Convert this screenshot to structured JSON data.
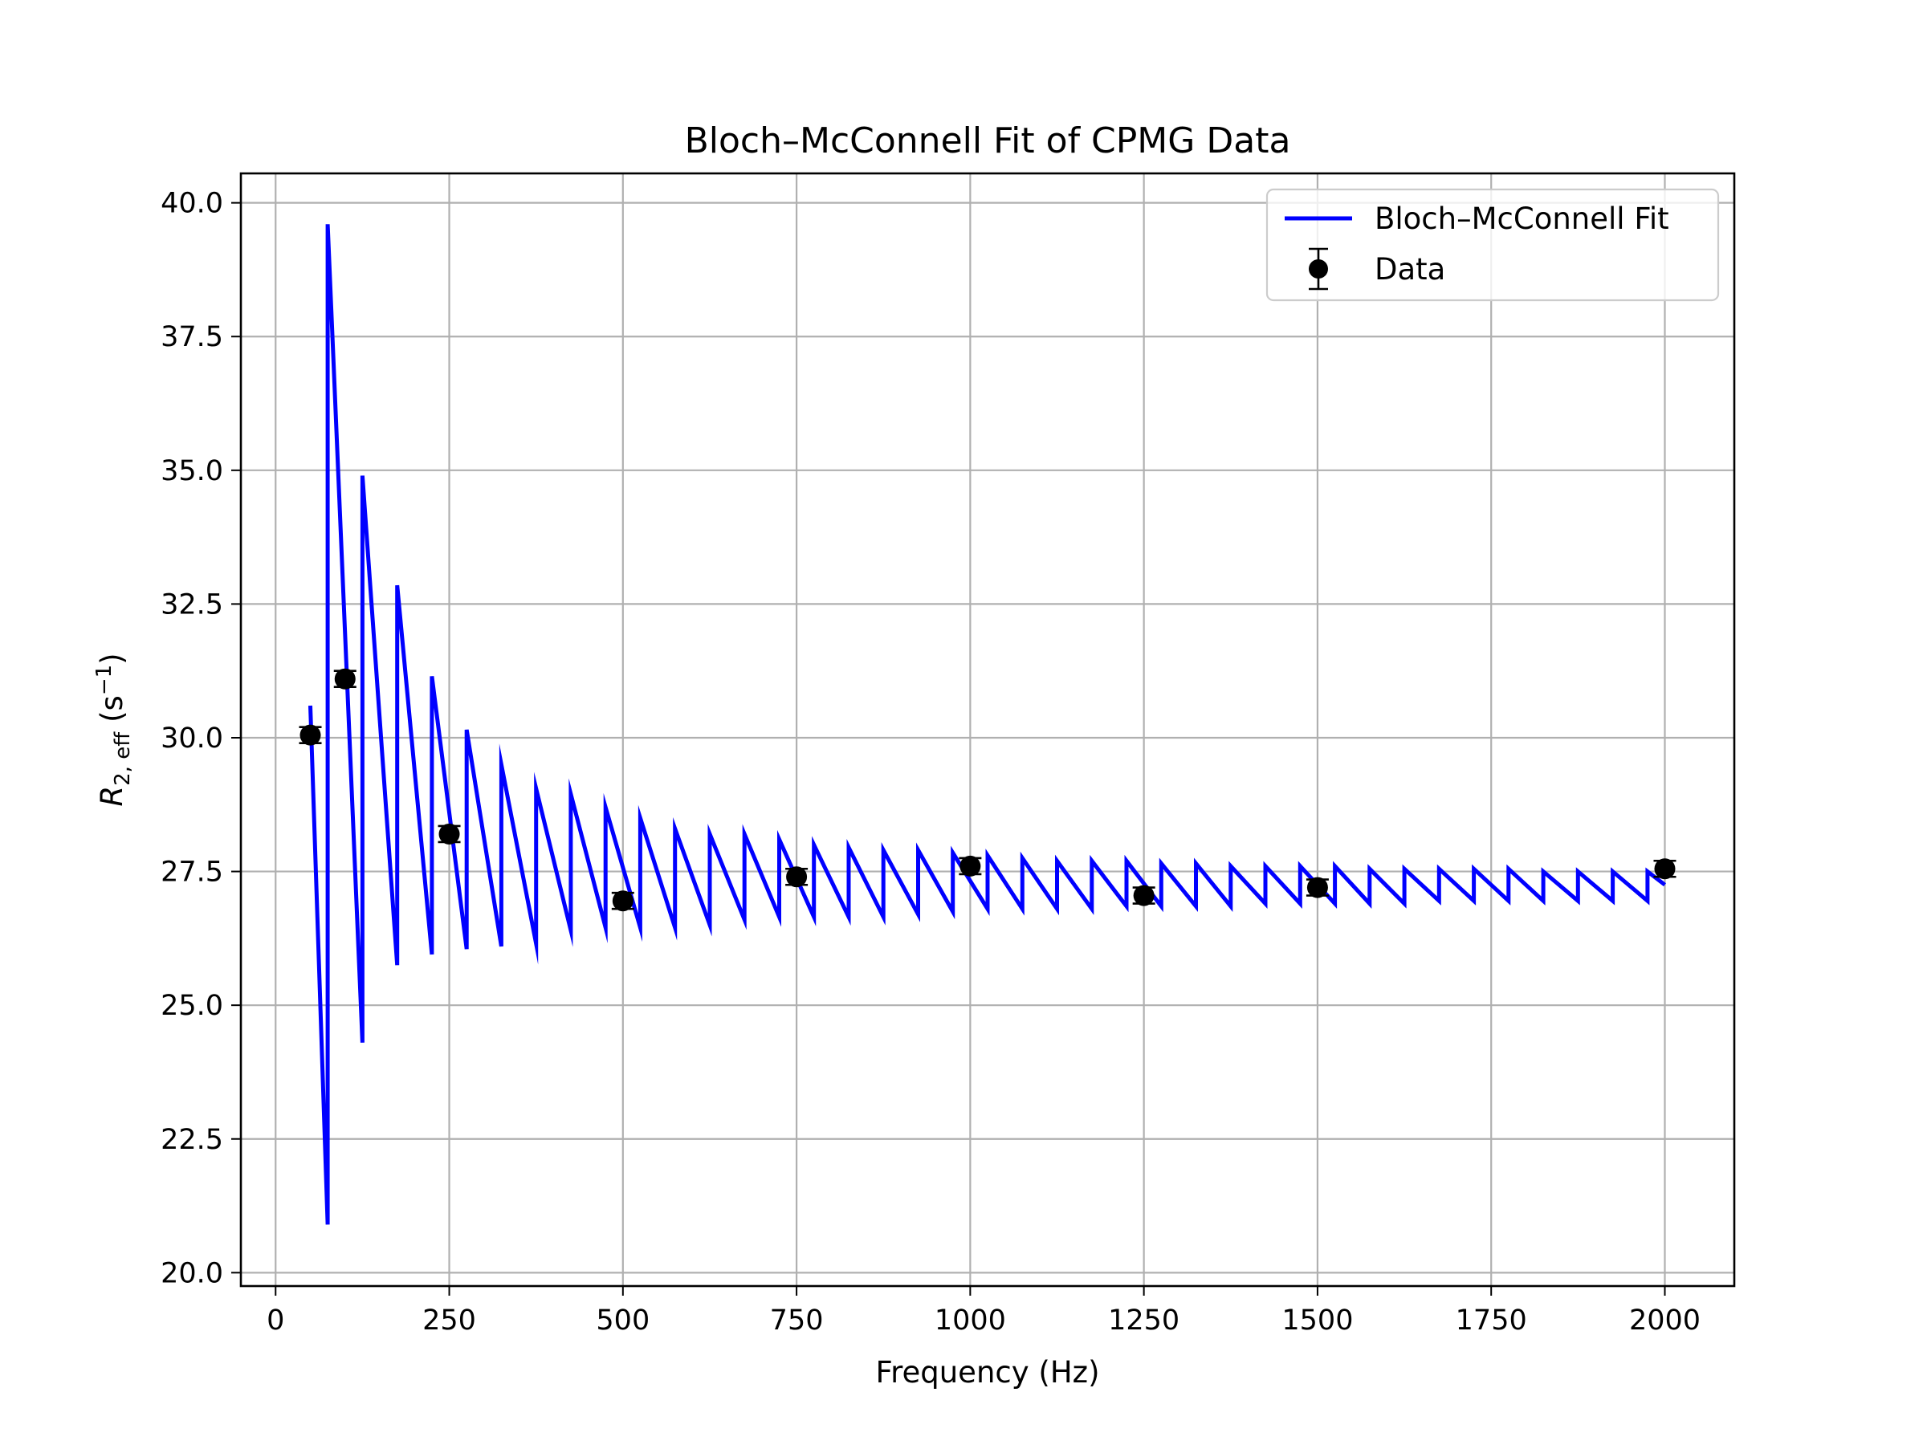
{
  "chart_data": {
    "type": "line",
    "title": "Bloch–McConnell Fit of CPMG Data",
    "xlabel": "Frequency (Hz)",
    "ylabel": {
      "symbol": "R",
      "subscript": "2, eff",
      "units_open": "(s",
      "units_sup": "−1",
      "units_close": ")"
    },
    "xlim": [
      -50,
      2100
    ],
    "ylim": [
      19.75,
      40.55
    ],
    "x_ticks": [
      0,
      250,
      500,
      750,
      1000,
      1250,
      1500,
      1750,
      2000
    ],
    "x_tick_labels": [
      "0",
      "250",
      "500",
      "750",
      "1000",
      "1250",
      "1500",
      "1750",
      "2000"
    ],
    "y_ticks": [
      20.0,
      22.5,
      25.0,
      27.5,
      30.0,
      32.5,
      35.0,
      37.5,
      40.0
    ],
    "y_tick_labels": [
      "20.0",
      "22.5",
      "25.0",
      "27.5",
      "30.0",
      "32.5",
      "35.0",
      "37.5",
      "40.0"
    ],
    "grid": true,
    "legend_position": "top-right",
    "series": [
      {
        "name": "Bloch–McConnell Fit",
        "kind": "line",
        "color": "#0000ff",
        "points": [
          [
            50,
            30.6
          ],
          [
            75,
            20.9
          ],
          [
            75,
            39.6
          ],
          [
            125,
            24.3
          ],
          [
            125,
            34.9
          ],
          [
            175,
            25.75
          ],
          [
            175,
            32.85
          ],
          [
            225,
            25.95
          ],
          [
            225,
            31.15
          ],
          [
            275,
            26.05
          ],
          [
            275,
            30.15
          ],
          [
            325,
            26.1
          ],
          [
            325,
            29.5
          ],
          [
            375,
            26.15
          ],
          [
            375,
            29.05
          ],
          [
            425,
            26.4
          ],
          [
            425,
            28.95
          ],
          [
            475,
            26.45
          ],
          [
            475,
            28.7
          ],
          [
            525,
            26.45
          ],
          [
            525,
            28.5
          ],
          [
            575,
            26.45
          ],
          [
            575,
            28.3
          ],
          [
            625,
            26.5
          ],
          [
            625,
            28.2
          ],
          [
            675,
            26.6
          ],
          [
            675,
            28.2
          ],
          [
            725,
            26.65
          ],
          [
            725,
            28.1
          ],
          [
            775,
            26.65
          ],
          [
            775,
            28.0
          ],
          [
            825,
            26.65
          ],
          [
            825,
            27.95
          ],
          [
            875,
            26.65
          ],
          [
            875,
            27.9
          ],
          [
            925,
            26.7
          ],
          [
            925,
            27.9
          ],
          [
            975,
            26.75
          ],
          [
            975,
            27.85
          ],
          [
            1025,
            26.8
          ],
          [
            1025,
            27.8
          ],
          [
            1075,
            26.8
          ],
          [
            1075,
            27.75
          ],
          [
            1125,
            26.8
          ],
          [
            1125,
            27.7
          ],
          [
            1175,
            26.8
          ],
          [
            1175,
            27.7
          ],
          [
            1225,
            26.85
          ],
          [
            1225,
            27.7
          ],
          [
            1275,
            26.85
          ],
          [
            1275,
            27.65
          ],
          [
            1325,
            26.85
          ],
          [
            1325,
            27.65
          ],
          [
            1375,
            26.85
          ],
          [
            1375,
            27.6
          ],
          [
            1425,
            26.9
          ],
          [
            1425,
            27.6
          ],
          [
            1475,
            26.9
          ],
          [
            1475,
            27.6
          ],
          [
            1525,
            26.9
          ],
          [
            1525,
            27.6
          ],
          [
            1575,
            26.9
          ],
          [
            1575,
            27.55
          ],
          [
            1625,
            26.9
          ],
          [
            1625,
            27.55
          ],
          [
            1675,
            26.95
          ],
          [
            1675,
            27.55
          ],
          [
            1725,
            26.95
          ],
          [
            1725,
            27.55
          ],
          [
            1775,
            26.95
          ],
          [
            1775,
            27.55
          ],
          [
            1825,
            26.95
          ],
          [
            1825,
            27.5
          ],
          [
            1875,
            26.95
          ],
          [
            1875,
            27.5
          ],
          [
            1925,
            26.95
          ],
          [
            1925,
            27.5
          ],
          [
            1975,
            26.95
          ],
          [
            1975,
            27.5
          ],
          [
            2000,
            27.25
          ]
        ]
      },
      {
        "name": "Data",
        "kind": "errorbar",
        "color": "#000000",
        "x": [
          50,
          100,
          250,
          500,
          750,
          1000,
          1250,
          1500,
          2000
        ],
        "y": [
          30.05,
          31.1,
          28.2,
          26.95,
          27.4,
          27.6,
          27.05,
          27.2,
          27.55
        ],
        "yerr": [
          0.15,
          0.15,
          0.15,
          0.15,
          0.15,
          0.15,
          0.15,
          0.15,
          0.15
        ]
      }
    ]
  }
}
